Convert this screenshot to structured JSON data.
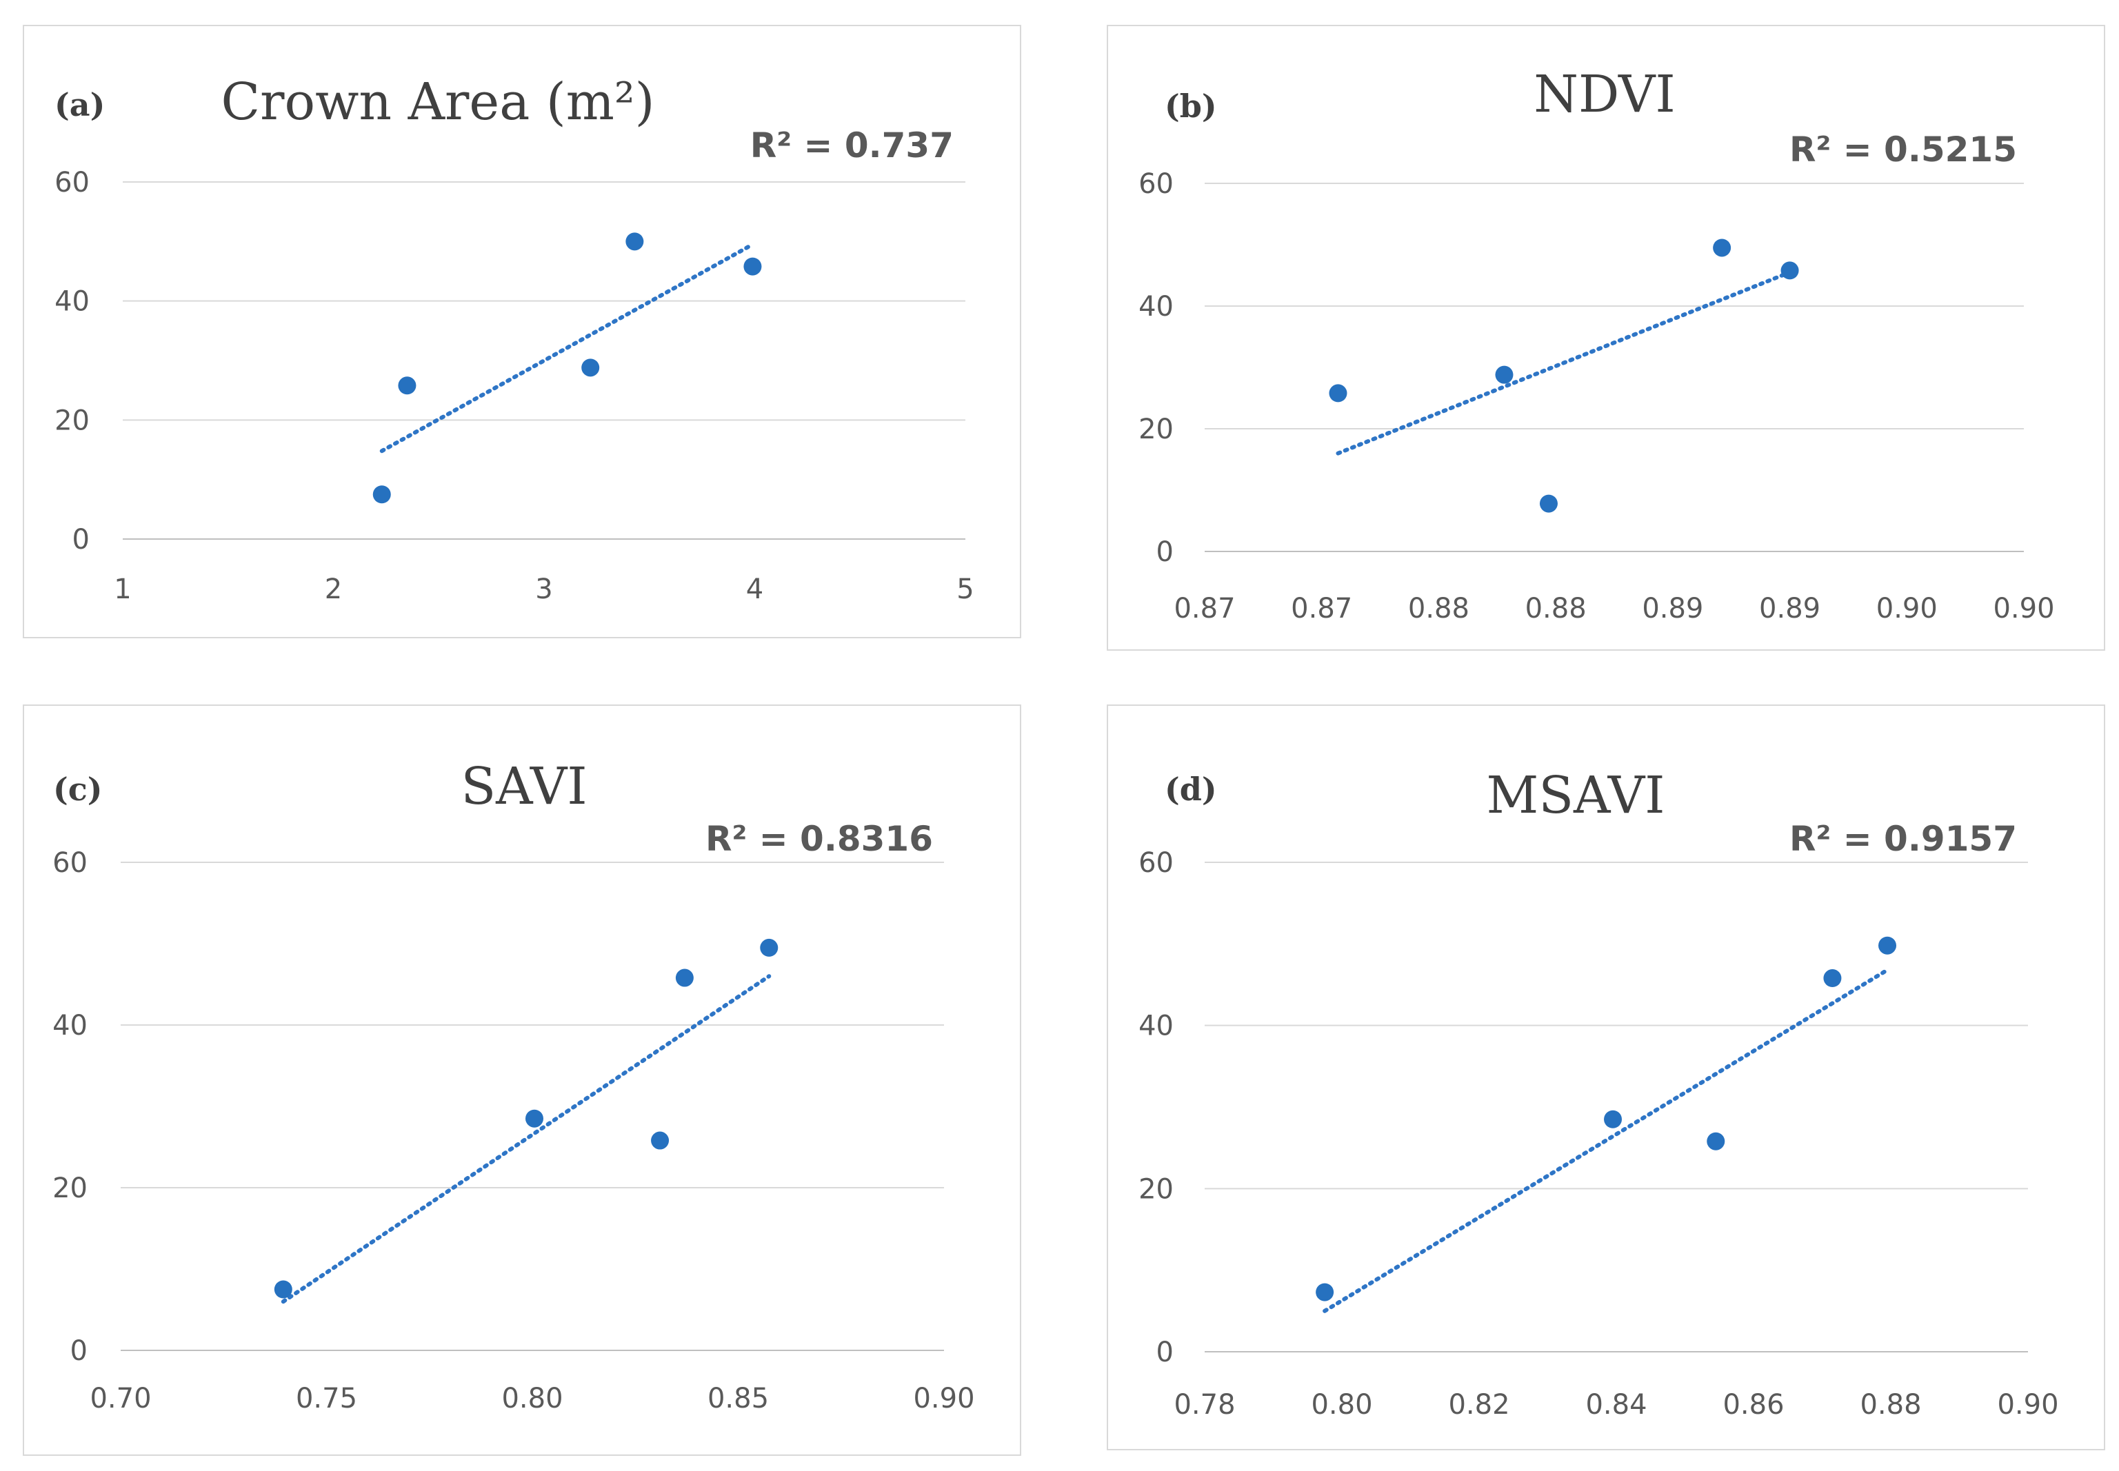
{
  "colors": {
    "marker": "#2671bf",
    "trend": "#2e75c6"
  },
  "chart_data": [
    {
      "type": "scatter",
      "panel_label": "(a)",
      "title": "Crown Area (m²)",
      "r_squared_label": "R² = 0.737",
      "xlabel": "",
      "ylabel": "",
      "xlim": [
        1,
        5
      ],
      "ylim": [
        0,
        60
      ],
      "x_ticks": [
        "1",
        "2",
        "3",
        "4",
        "5"
      ],
      "y_ticks": [
        "0",
        "20",
        "40",
        "60"
      ],
      "x": [
        2.23,
        2.35,
        3.22,
        3.43,
        3.99
      ],
      "y": [
        7.5,
        25.8,
        28.8,
        50.0,
        45.8
      ],
      "trendline": {
        "x": [
          2.23,
          3.99
        ],
        "y": [
          14.8,
          49.5
        ]
      },
      "grid": true
    },
    {
      "type": "scatter",
      "panel_label": "(b)",
      "title": "NDVI",
      "r_squared_label": "R² = 0.5215",
      "xlabel": "",
      "ylabel": "",
      "xlim": [
        0.865,
        0.9
      ],
      "ylim": [
        0,
        60
      ],
      "x_ticks": [
        "0.87",
        "0.87",
        "0.88",
        "0.88",
        "0.89",
        "0.89",
        "0.90",
        "0.90"
      ],
      "y_ticks": [
        "0",
        "20",
        "40",
        "60"
      ],
      "x": [
        0.8707,
        0.8778,
        0.8797,
        0.8871,
        0.89
      ],
      "y": [
        25.8,
        28.8,
        7.8,
        49.5,
        45.8
      ],
      "trendline": {
        "x": [
          0.8707,
          0.89
        ],
        "y": [
          16.0,
          45.5
        ]
      },
      "grid": true
    },
    {
      "type": "scatter",
      "panel_label": "(c)",
      "title": "SAVI",
      "r_squared_label": "R² = 0.8316",
      "xlabel": "",
      "ylabel": "",
      "xlim": [
        0.7,
        0.9
      ],
      "ylim": [
        0,
        60
      ],
      "x_ticks": [
        "0.70",
        "0.75",
        "0.80",
        "0.85",
        "0.90"
      ],
      "y_ticks": [
        "0",
        "20",
        "40",
        "60"
      ],
      "x": [
        0.7395,
        0.8005,
        0.831,
        0.837,
        0.8575
      ],
      "y": [
        7.5,
        28.5,
        25.8,
        45.8,
        49.5
      ],
      "trendline": {
        "x": [
          0.7395,
          0.8575
        ],
        "y": [
          6.0,
          46.0
        ]
      },
      "grid": true
    },
    {
      "type": "scatter",
      "panel_label": "(d)",
      "title": "MSAVI",
      "r_squared_label": "R² = 0.9157",
      "xlabel": "",
      "ylabel": "",
      "xlim": [
        0.78,
        0.9
      ],
      "ylim": [
        0,
        60
      ],
      "x_ticks": [
        "0.78",
        "0.80",
        "0.82",
        "0.84",
        "0.86",
        "0.88",
        "0.90"
      ],
      "y_ticks": [
        "0",
        "20",
        "40",
        "60"
      ],
      "x": [
        0.7975,
        0.8395,
        0.8545,
        0.8715,
        0.8795
      ],
      "y": [
        7.3,
        28.5,
        25.8,
        45.8,
        49.8
      ],
      "trendline": {
        "x": [
          0.7975,
          0.8795
        ],
        "y": [
          5.0,
          46.8
        ]
      },
      "grid": true
    }
  ]
}
